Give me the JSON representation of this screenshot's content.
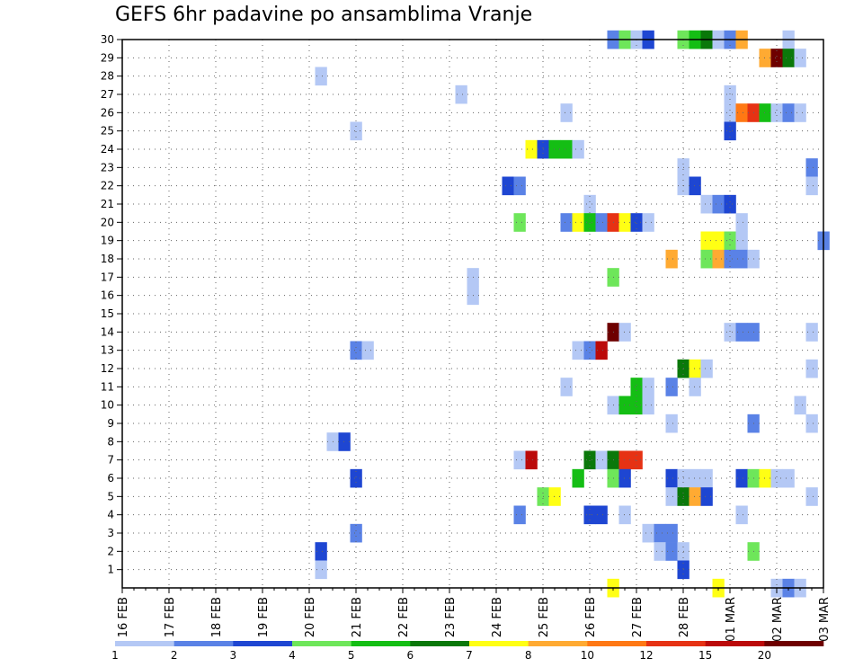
{
  "chart_data": {
    "type": "heatmap",
    "title": "GEFS 6hr padavine po ansamblima Vranje",
    "xlabel": "",
    "ylabel": "",
    "x_tick_labels": [
      "16 FEB",
      "17 FEB",
      "18 FEB",
      "19 FEB",
      "20 FEB",
      "21 FEB",
      "22 FEB",
      "23 FEB",
      "24 FEB",
      "25 FEB",
      "26 FEB",
      "27 FEB",
      "28 FEB",
      "01 MAR",
      "02 MAR",
      "03 MAR"
    ],
    "x_range_steps": [
      0,
      60
    ],
    "step_hours": 6,
    "y_tick_labels": [
      1,
      2,
      3,
      4,
      5,
      6,
      7,
      8,
      9,
      10,
      11,
      12,
      13,
      14,
      15,
      16,
      17,
      18,
      19,
      20,
      21,
      22,
      23,
      24,
      25,
      26,
      27,
      28,
      29,
      30
    ],
    "y_range": [
      0,
      30
    ],
    "grid": true,
    "legend_position": "bottom",
    "color_scale": {
      "boundaries": [
        "1",
        "2",
        "3",
        "4",
        "5",
        "6",
        "7",
        "8",
        "10",
        "12",
        "15",
        "20"
      ],
      "colors": [
        "#b4c8f5",
        "#5a82e6",
        "#1e46d2",
        "#6ee65a",
        "#14be14",
        "#0a780a",
        "#ffff14",
        "#ffaa32",
        "#ff7814",
        "#e63214",
        "#bb0a0a",
        "#6e0000"
      ]
    },
    "cells": [
      {
        "member": 30,
        "step": 42,
        "class": 1
      },
      {
        "member": 30,
        "step": 43,
        "class": 3
      },
      {
        "member": 30,
        "step": 44,
        "class": 0
      },
      {
        "member": 30,
        "step": 45,
        "class": 2
      },
      {
        "member": 30,
        "step": 48,
        "class": 3
      },
      {
        "member": 30,
        "step": 49,
        "class": 4
      },
      {
        "member": 30,
        "step": 50,
        "class": 5
      },
      {
        "member": 30,
        "step": 51,
        "class": 0
      },
      {
        "member": 30,
        "step": 52,
        "class": 1
      },
      {
        "member": 30,
        "step": 53,
        "class": 7
      },
      {
        "member": 30,
        "step": 57,
        "class": 0
      },
      {
        "member": 29,
        "step": 55,
        "class": 7
      },
      {
        "member": 29,
        "step": 56,
        "class": 11
      },
      {
        "member": 29,
        "step": 57,
        "class": 5
      },
      {
        "member": 29,
        "step": 58,
        "class": 0
      },
      {
        "member": 28,
        "step": 17,
        "class": 0
      },
      {
        "member": 27,
        "step": 29,
        "class": 0
      },
      {
        "member": 27,
        "step": 52,
        "class": 0
      },
      {
        "member": 26,
        "step": 38,
        "class": 0
      },
      {
        "member": 26,
        "step": 52,
        "class": 0
      },
      {
        "member": 26,
        "step": 53,
        "class": 8
      },
      {
        "member": 26,
        "step": 54,
        "class": 9
      },
      {
        "member": 26,
        "step": 55,
        "class": 4
      },
      {
        "member": 26,
        "step": 56,
        "class": 0
      },
      {
        "member": 26,
        "step": 57,
        "class": 1
      },
      {
        "member": 26,
        "step": 58,
        "class": 0
      },
      {
        "member": 25,
        "step": 20,
        "class": 0
      },
      {
        "member": 25,
        "step": 52,
        "class": 2
      },
      {
        "member": 24,
        "step": 35,
        "class": 6
      },
      {
        "member": 24,
        "step": 36,
        "class": 2
      },
      {
        "member": 24,
        "step": 37,
        "class": 4
      },
      {
        "member": 24,
        "step": 38,
        "class": 4
      },
      {
        "member": 24,
        "step": 39,
        "class": 0
      },
      {
        "member": 23,
        "step": 48,
        "class": 0
      },
      {
        "member": 23,
        "step": 59,
        "class": 1
      },
      {
        "member": 22,
        "step": 33,
        "class": 2
      },
      {
        "member": 22,
        "step": 34,
        "class": 1
      },
      {
        "member": 22,
        "step": 48,
        "class": 0
      },
      {
        "member": 22,
        "step": 49,
        "class": 2
      },
      {
        "member": 22,
        "step": 59,
        "class": 0
      },
      {
        "member": 21,
        "step": 40,
        "class": 0
      },
      {
        "member": 21,
        "step": 50,
        "class": 0
      },
      {
        "member": 21,
        "step": 51,
        "class": 1
      },
      {
        "member": 21,
        "step": 52,
        "class": 2
      },
      {
        "member": 20,
        "step": 34,
        "class": 3
      },
      {
        "member": 20,
        "step": 38,
        "class": 1
      },
      {
        "member": 20,
        "step": 39,
        "class": 6
      },
      {
        "member": 20,
        "step": 40,
        "class": 4
      },
      {
        "member": 20,
        "step": 41,
        "class": 1
      },
      {
        "member": 20,
        "step": 42,
        "class": 9
      },
      {
        "member": 20,
        "step": 43,
        "class": 6
      },
      {
        "member": 20,
        "step": 44,
        "class": 2
      },
      {
        "member": 20,
        "step": 45,
        "class": 0
      },
      {
        "member": 20,
        "step": 53,
        "class": 0
      },
      {
        "member": 19,
        "step": 50,
        "class": 6
      },
      {
        "member": 19,
        "step": 51,
        "class": 6
      },
      {
        "member": 19,
        "step": 52,
        "class": 3
      },
      {
        "member": 19,
        "step": 53,
        "class": 0
      },
      {
        "member": 19,
        "step": 60,
        "class": 1
      },
      {
        "member": 18,
        "step": 47,
        "class": 7
      },
      {
        "member": 18,
        "step": 50,
        "class": 3
      },
      {
        "member": 18,
        "step": 51,
        "class": 7
      },
      {
        "member": 18,
        "step": 52,
        "class": 1
      },
      {
        "member": 18,
        "step": 53,
        "class": 1
      },
      {
        "member": 18,
        "step": 54,
        "class": 0
      },
      {
        "member": 17,
        "step": 30,
        "class": 0
      },
      {
        "member": 17,
        "step": 42,
        "class": 3
      },
      {
        "member": 16,
        "step": 30,
        "class": 0
      },
      {
        "member": 14,
        "step": 42,
        "class": 11
      },
      {
        "member": 14,
        "step": 43,
        "class": 0
      },
      {
        "member": 14,
        "step": 52,
        "class": 0
      },
      {
        "member": 14,
        "step": 53,
        "class": 1
      },
      {
        "member": 14,
        "step": 54,
        "class": 1
      },
      {
        "member": 14,
        "step": 59,
        "class": 0
      },
      {
        "member": 13,
        "step": 20,
        "class": 1
      },
      {
        "member": 13,
        "step": 21,
        "class": 0
      },
      {
        "member": 13,
        "step": 39,
        "class": 0
      },
      {
        "member": 13,
        "step": 40,
        "class": 1
      },
      {
        "member": 13,
        "step": 41,
        "class": 10
      },
      {
        "member": 12,
        "step": 48,
        "class": 5
      },
      {
        "member": 12,
        "step": 49,
        "class": 6
      },
      {
        "member": 12,
        "step": 50,
        "class": 0
      },
      {
        "member": 12,
        "step": 59,
        "class": 0
      },
      {
        "member": 11,
        "step": 38,
        "class": 0
      },
      {
        "member": 11,
        "step": 44,
        "class": 4
      },
      {
        "member": 11,
        "step": 45,
        "class": 0
      },
      {
        "member": 11,
        "step": 47,
        "class": 1
      },
      {
        "member": 11,
        "step": 49,
        "class": 0
      },
      {
        "member": 10,
        "step": 42,
        "class": 0
      },
      {
        "member": 10,
        "step": 43,
        "class": 4
      },
      {
        "member": 10,
        "step": 44,
        "class": 4
      },
      {
        "member": 10,
        "step": 45,
        "class": 0
      },
      {
        "member": 10,
        "step": 58,
        "class": 0
      },
      {
        "member": 9,
        "step": 47,
        "class": 0
      },
      {
        "member": 9,
        "step": 54,
        "class": 1
      },
      {
        "member": 9,
        "step": 59,
        "class": 0
      },
      {
        "member": 8,
        "step": 18,
        "class": 0
      },
      {
        "member": 8,
        "step": 19,
        "class": 2
      },
      {
        "member": 7,
        "step": 34,
        "class": 0
      },
      {
        "member": 7,
        "step": 35,
        "class": 10
      },
      {
        "member": 7,
        "step": 40,
        "class": 5
      },
      {
        "member": 7,
        "step": 41,
        "class": 0
      },
      {
        "member": 7,
        "step": 42,
        "class": 5
      },
      {
        "member": 7,
        "step": 43,
        "class": 9
      },
      {
        "member": 7,
        "step": 44,
        "class": 9
      },
      {
        "member": 6,
        "step": 20,
        "class": 2
      },
      {
        "member": 6,
        "step": 39,
        "class": 4
      },
      {
        "member": 6,
        "step": 42,
        "class": 3
      },
      {
        "member": 6,
        "step": 43,
        "class": 2
      },
      {
        "member": 6,
        "step": 47,
        "class": 2
      },
      {
        "member": 6,
        "step": 48,
        "class": 0
      },
      {
        "member": 6,
        "step": 49,
        "class": 0
      },
      {
        "member": 6,
        "step": 50,
        "class": 0
      },
      {
        "member": 6,
        "step": 53,
        "class": 2
      },
      {
        "member": 6,
        "step": 54,
        "class": 3
      },
      {
        "member": 6,
        "step": 55,
        "class": 6
      },
      {
        "member": 6,
        "step": 56,
        "class": 0
      },
      {
        "member": 6,
        "step": 57,
        "class": 0
      },
      {
        "member": 5,
        "step": 36,
        "class": 3
      },
      {
        "member": 5,
        "step": 37,
        "class": 6
      },
      {
        "member": 5,
        "step": 47,
        "class": 0
      },
      {
        "member": 5,
        "step": 48,
        "class": 5
      },
      {
        "member": 5,
        "step": 49,
        "class": 7
      },
      {
        "member": 5,
        "step": 50,
        "class": 2
      },
      {
        "member": 5,
        "step": 59,
        "class": 0
      },
      {
        "member": 4,
        "step": 34,
        "class": 1
      },
      {
        "member": 4,
        "step": 40,
        "class": 2
      },
      {
        "member": 4,
        "step": 41,
        "class": 2
      },
      {
        "member": 4,
        "step": 43,
        "class": 0
      },
      {
        "member": 4,
        "step": 53,
        "class": 0
      },
      {
        "member": 3,
        "step": 20,
        "class": 1
      },
      {
        "member": 3,
        "step": 45,
        "class": 0
      },
      {
        "member": 3,
        "step": 46,
        "class": 1
      },
      {
        "member": 3,
        "step": 47,
        "class": 1
      },
      {
        "member": 2,
        "step": 17,
        "class": 2
      },
      {
        "member": 2,
        "step": 46,
        "class": 0
      },
      {
        "member": 2,
        "step": 47,
        "class": 1
      },
      {
        "member": 2,
        "step": 48,
        "class": 0
      },
      {
        "member": 2,
        "step": 54,
        "class": 3
      },
      {
        "member": 1,
        "step": 17,
        "class": 0
      },
      {
        "member": 1,
        "step": 48,
        "class": 2
      },
      {
        "member": 0,
        "step": 42,
        "class": 6
      },
      {
        "member": 0,
        "step": 51,
        "class": 6
      },
      {
        "member": 0,
        "step": 56,
        "class": 0
      },
      {
        "member": 0,
        "step": 57,
        "class": 1
      },
      {
        "member": 0,
        "step": 58,
        "class": 0
      }
    ]
  }
}
